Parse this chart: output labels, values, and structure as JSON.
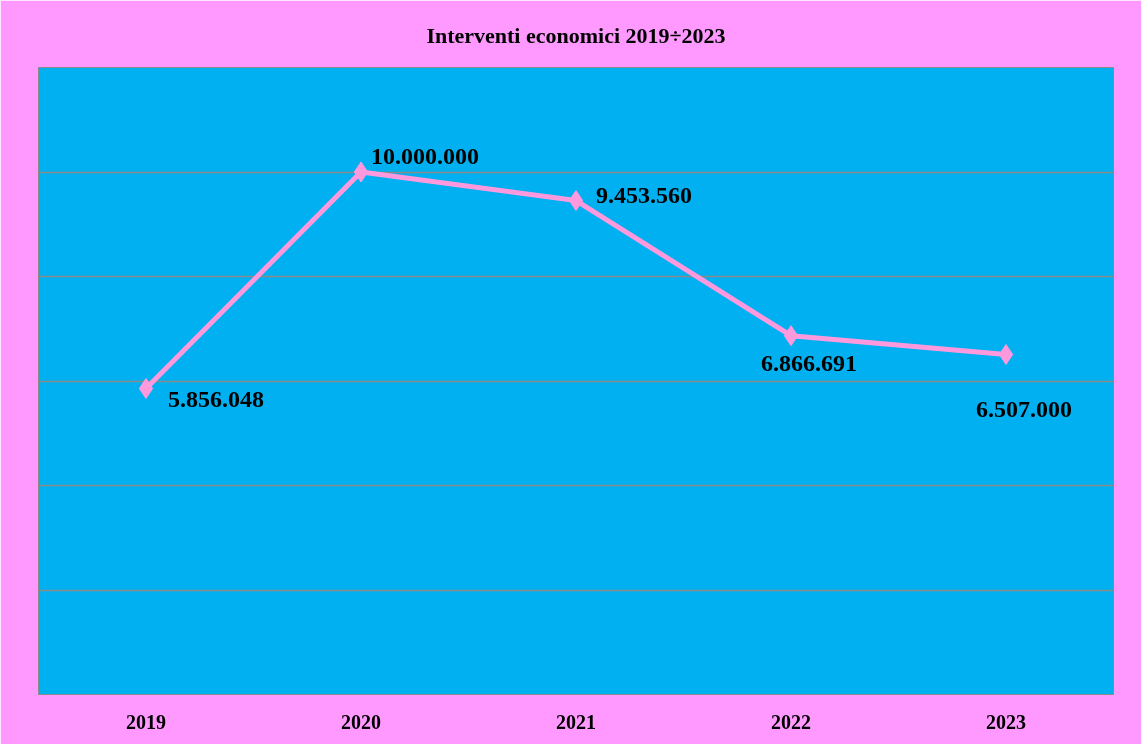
{
  "chart_data": {
    "type": "line",
    "title": "Interventi economici 2019÷2023",
    "categories": [
      "2019",
      "2020",
      "2021",
      "2022",
      "2023"
    ],
    "series": [
      {
        "color": "#ff99dd",
        "values": [
          5856048,
          10000000,
          9453560,
          6866691,
          6507000
        ],
        "value_labels": [
          "5.856.048",
          "10.000.000",
          "9.453.560",
          "6.866.691",
          "6.507.000"
        ]
      }
    ],
    "ylim": [
      0,
      12000000
    ],
    "yticks": [
      {
        "value": 0,
        "label": null
      },
      {
        "value": 2000000,
        "label": null
      },
      {
        "value": 4000000,
        "label": null
      },
      {
        "value": 6000000,
        "label": null
      },
      {
        "value": 8000000,
        "label": null
      },
      {
        "value": 10000000,
        "label": null
      },
      {
        "value": 12000000,
        "label": null
      }
    ],
    "tick_labels": "x",
    "grid": "y",
    "marker": "diamond",
    "line_style": "solid"
  }
}
